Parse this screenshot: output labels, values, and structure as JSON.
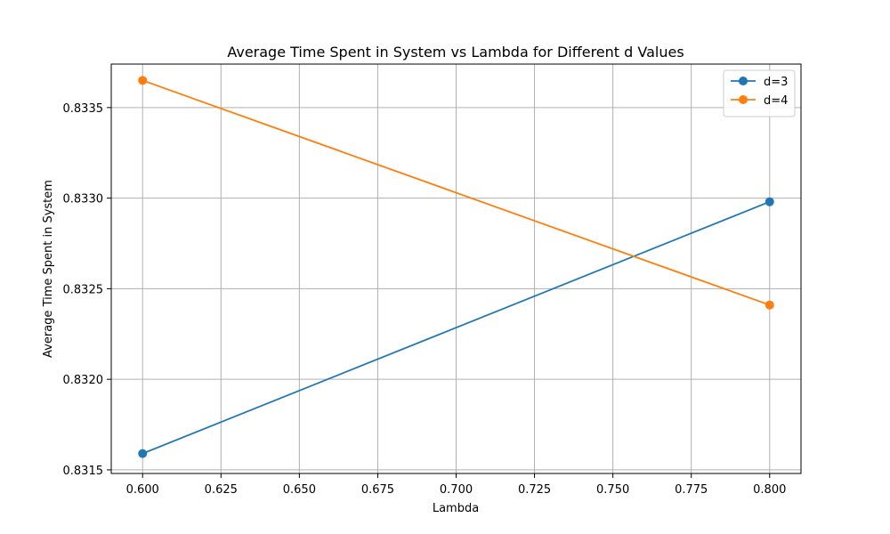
{
  "chart_data": {
    "type": "line",
    "title": "Average Time Spent in System vs Lambda for Different d Values",
    "xlabel": "Lambda",
    "ylabel": "Average Time Spent in System",
    "x": [
      0.6,
      0.8
    ],
    "xlim": [
      0.59,
      0.81
    ],
    "ylim": [
      0.83148,
      0.83374
    ],
    "xticks": [
      0.6,
      0.625,
      0.65,
      0.675,
      0.7,
      0.725,
      0.75,
      0.775,
      0.8
    ],
    "xtick_labels": [
      "0.600",
      "0.625",
      "0.650",
      "0.675",
      "0.700",
      "0.725",
      "0.750",
      "0.775",
      "0.800"
    ],
    "yticks": [
      0.8315,
      0.832,
      0.8325,
      0.833,
      0.8335
    ],
    "ytick_labels": [
      "0.8315",
      "0.8320",
      "0.8325",
      "0.8330",
      "0.8335"
    ],
    "grid": true,
    "legend_position": "top-right",
    "series": [
      {
        "name": "d=3",
        "color": "#1f77b4",
        "values": [
          0.83159,
          0.83298
        ]
      },
      {
        "name": "d=4",
        "color": "#ff7f0e",
        "values": [
          0.83365,
          0.83241
        ]
      }
    ]
  }
}
